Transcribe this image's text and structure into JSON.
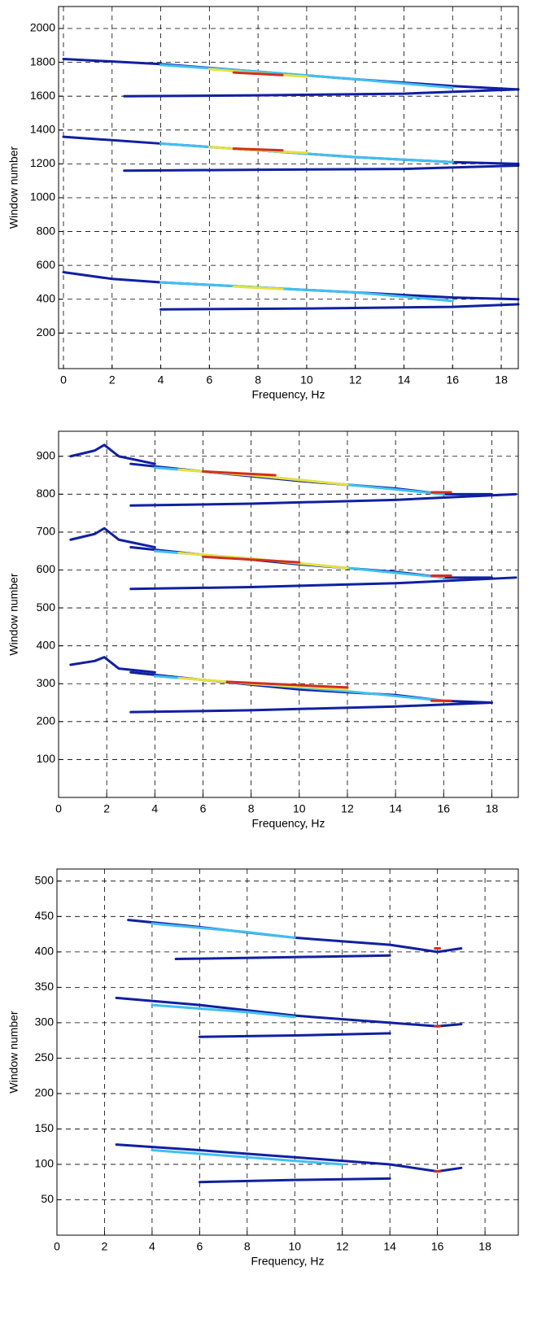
{
  "chart_data": [
    {
      "type": "contour",
      "xlabel": "Frequency, Hz",
      "ylabel": "Window number",
      "xlim": [
        -0.2,
        18.7
      ],
      "ylim": [
        -10,
        2130
      ],
      "xticks": [
        0,
        2,
        4,
        6,
        8,
        10,
        12,
        14,
        16,
        18
      ],
      "yticks": [
        200,
        400,
        600,
        800,
        1000,
        1200,
        1400,
        1600,
        1800,
        2000
      ],
      "grid": true,
      "series": [
        {
          "color": "#1020a0",
          "x": [
            0,
            4,
            8,
            12,
            16,
            18.7
          ],
          "values": [
            1820,
            1790,
            1745,
            1700,
            1660,
            1640
          ]
        },
        {
          "color": "#1020a0",
          "x": [
            2.5,
            8,
            14,
            18.7
          ],
          "values": [
            1600,
            1605,
            1615,
            1640
          ]
        },
        {
          "color": "#40c0f0",
          "x": [
            4,
            8,
            12,
            16
          ],
          "values": [
            1785,
            1745,
            1700,
            1650
          ]
        },
        {
          "color": "#e8e040",
          "x": [
            6,
            8,
            10
          ],
          "values": [
            1760,
            1735,
            1715
          ]
        },
        {
          "color": "#d03020",
          "x": [
            7,
            9
          ],
          "values": [
            1740,
            1725
          ]
        },
        {
          "color": "#1020a0",
          "x": [
            0,
            4,
            8,
            12,
            16,
            18.7
          ],
          "values": [
            1360,
            1320,
            1280,
            1240,
            1210,
            1200
          ]
        },
        {
          "color": "#1020a0",
          "x": [
            2.5,
            8,
            14,
            18.7
          ],
          "values": [
            1160,
            1165,
            1170,
            1190
          ]
        },
        {
          "color": "#40c0f0",
          "x": [
            4,
            8,
            12,
            16
          ],
          "values": [
            1320,
            1280,
            1240,
            1210
          ]
        },
        {
          "color": "#e8e040",
          "x": [
            6,
            8,
            10
          ],
          "values": [
            1300,
            1280,
            1265
          ]
        },
        {
          "color": "#d03020",
          "x": [
            7,
            9
          ],
          "values": [
            1290,
            1280
          ]
        },
        {
          "color": "#1020a0",
          "x": [
            0,
            2,
            4,
            8,
            12,
            16,
            18.7
          ],
          "values": [
            560,
            520,
            500,
            470,
            440,
            410,
            400
          ]
        },
        {
          "color": "#1020a0",
          "x": [
            4,
            10,
            16,
            18.7
          ],
          "values": [
            340,
            345,
            355,
            370
          ]
        },
        {
          "color": "#40c0f0",
          "x": [
            4,
            8,
            12,
            16
          ],
          "values": [
            500,
            470,
            440,
            390
          ]
        },
        {
          "color": "#e8e040",
          "x": [
            7,
            9
          ],
          "values": [
            475,
            460
          ]
        }
      ]
    },
    {
      "type": "contour",
      "xlabel": "Frequency, Hz",
      "ylabel": "Window number",
      "xlim": [
        0,
        19.1
      ],
      "ylim": [
        0,
        966
      ],
      "xticks": [
        0,
        2,
        4,
        6,
        8,
        10,
        12,
        14,
        16,
        18
      ],
      "yticks": [
        100,
        200,
        300,
        400,
        500,
        600,
        700,
        800,
        900
      ],
      "grid": true,
      "series": [
        {
          "color": "#1020a0",
          "x": [
            3,
            6,
            10,
            14,
            16,
            18
          ],
          "values": [
            880,
            860,
            835,
            815,
            800,
            800
          ]
        },
        {
          "color": "#1020a0",
          "x": [
            3,
            8,
            14,
            19
          ],
          "values": [
            770,
            775,
            785,
            800
          ]
        },
        {
          "color": "#1020a0",
          "x": [
            0.5,
            1.5,
            1.9,
            2.5,
            4
          ],
          "values": [
            900,
            915,
            930,
            900,
            880
          ]
        },
        {
          "color": "#40c0f0",
          "x": [
            4,
            8,
            12,
            16
          ],
          "values": [
            870,
            850,
            825,
            800
          ]
        },
        {
          "color": "#e8e040",
          "x": [
            5,
            8,
            12
          ],
          "values": [
            865,
            850,
            825
          ]
        },
        {
          "color": "#d03020",
          "x": [
            6,
            9
          ],
          "values": [
            860,
            850
          ]
        },
        {
          "color": "#d03020",
          "x": [
            15.5,
            16.3
          ],
          "values": [
            805,
            805
          ]
        },
        {
          "color": "#1020a0",
          "x": [
            3,
            6,
            10,
            14,
            16,
            18
          ],
          "values": [
            660,
            640,
            615,
            595,
            580,
            580
          ]
        },
        {
          "color": "#1020a0",
          "x": [
            3,
            8,
            14,
            19
          ],
          "values": [
            550,
            555,
            565,
            580
          ]
        },
        {
          "color": "#1020a0",
          "x": [
            0.5,
            1.5,
            1.9,
            2.5,
            4
          ],
          "values": [
            680,
            695,
            710,
            680,
            660
          ]
        },
        {
          "color": "#40c0f0",
          "x": [
            4,
            8,
            12,
            16
          ],
          "values": [
            650,
            630,
            605,
            580
          ]
        },
        {
          "color": "#e8e040",
          "x": [
            5,
            8,
            12
          ],
          "values": [
            645,
            630,
            605
          ]
        },
        {
          "color": "#d03020",
          "x": [
            6,
            10
          ],
          "values": [
            635,
            620
          ]
        },
        {
          "color": "#d03020",
          "x": [
            15.5,
            16.3
          ],
          "values": [
            585,
            585
          ]
        },
        {
          "color": "#1020a0",
          "x": [
            3,
            6,
            10,
            14,
            16,
            18
          ],
          "values": [
            330,
            310,
            285,
            270,
            255,
            250
          ]
        },
        {
          "color": "#1020a0",
          "x": [
            3,
            8,
            14,
            18
          ],
          "values": [
            225,
            230,
            240,
            250
          ]
        },
        {
          "color": "#1020a0",
          "x": [
            0.5,
            1.5,
            1.9,
            2.5,
            4
          ],
          "values": [
            350,
            360,
            370,
            340,
            330
          ]
        },
        {
          "color": "#40c0f0",
          "x": [
            4,
            8,
            12,
            16
          ],
          "values": [
            320,
            300,
            280,
            255
          ]
        },
        {
          "color": "#e8e040",
          "x": [
            5,
            8,
            12
          ],
          "values": [
            315,
            300,
            285
          ]
        },
        {
          "color": "#d03020",
          "x": [
            7,
            12
          ],
          "values": [
            305,
            290
          ]
        },
        {
          "color": "#d03020",
          "x": [
            15.5,
            16.3
          ],
          "values": [
            255,
            255
          ]
        }
      ]
    },
    {
      "type": "contour",
      "xlabel": "Frequency, Hz",
      "ylabel": "Window number",
      "xlim": [
        0,
        19.4
      ],
      "ylim": [
        0,
        517
      ],
      "xticks": [
        0,
        2,
        4,
        6,
        8,
        10,
        12,
        14,
        16,
        18
      ],
      "yticks": [
        50,
        100,
        150,
        200,
        250,
        300,
        350,
        400,
        450,
        500
      ],
      "grid": true,
      "series": [
        {
          "color": "#1020a0",
          "x": [
            3,
            6,
            10,
            14,
            16,
            17
          ],
          "values": [
            445,
            435,
            420,
            410,
            400,
            405
          ]
        },
        {
          "color": "#1020a0",
          "x": [
            5,
            9,
            14
          ],
          "values": [
            390,
            392,
            395
          ]
        },
        {
          "color": "#40c0f0",
          "x": [
            4,
            8,
            10
          ],
          "values": [
            440,
            428,
            420
          ]
        },
        {
          "color": "#d03020",
          "x": [
            15.9,
            16.1
          ],
          "values": [
            405,
            405
          ]
        },
        {
          "color": "#1020a0",
          "x": [
            2.5,
            6,
            10,
            14,
            16,
            17
          ],
          "values": [
            335,
            325,
            310,
            300,
            295,
            298
          ]
        },
        {
          "color": "#1020a0",
          "x": [
            6,
            10,
            14
          ],
          "values": [
            280,
            282,
            285
          ]
        },
        {
          "color": "#40c0f0",
          "x": [
            4,
            8,
            10
          ],
          "values": [
            325,
            315,
            308
          ]
        },
        {
          "color": "#d03020",
          "x": [
            15.9,
            16.1
          ],
          "values": [
            295,
            295
          ]
        },
        {
          "color": "#1020a0",
          "x": [
            2.5,
            6,
            10,
            14,
            16,
            17
          ],
          "values": [
            128,
            120,
            110,
            100,
            90,
            95
          ]
        },
        {
          "color": "#1020a0",
          "x": [
            6,
            10,
            14
          ],
          "values": [
            75,
            78,
            80
          ]
        },
        {
          "color": "#40c0f0",
          "x": [
            4,
            8,
            12
          ],
          "values": [
            120,
            110,
            100
          ]
        },
        {
          "color": "#d03020",
          "x": [
            15.9,
            16.1
          ],
          "values": [
            90,
            90
          ]
        }
      ]
    }
  ]
}
